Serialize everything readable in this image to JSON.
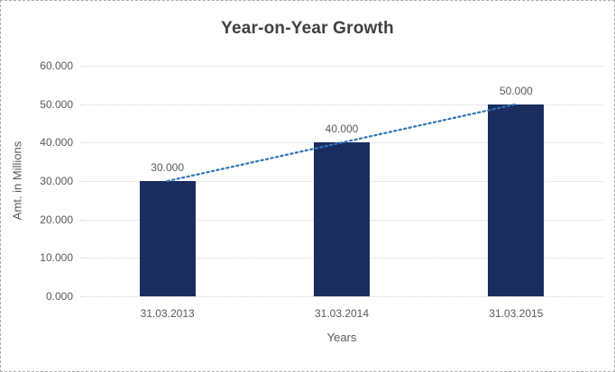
{
  "window": {
    "background": "#ffffff",
    "border_color": "#ababab"
  },
  "chart_data": {
    "type": "bar",
    "title": "Year-on-Year Growth",
    "xlabel": "Years",
    "ylabel": "Amt. in Millions",
    "categories": [
      "31.03.2013",
      "31.03.2014",
      "31.03.2015"
    ],
    "values": [
      30000,
      40000,
      50000
    ],
    "data_labels": [
      "30.000",
      "40.000",
      "50.000"
    ],
    "y_ticks": [
      {
        "value": 0,
        "label": "0.000"
      },
      {
        "value": 10000,
        "label": "10.000"
      },
      {
        "value": 20000,
        "label": "20.000"
      },
      {
        "value": 30000,
        "label": "30.000"
      },
      {
        "value": 40000,
        "label": "40.000"
      },
      {
        "value": 50000,
        "label": "50.000"
      },
      {
        "value": 60000,
        "label": "60.000"
      }
    ],
    "ylim": [
      0,
      60000
    ],
    "grid": true,
    "legend_position": "none",
    "bar_color": "#1b2d5f",
    "trendline": {
      "type": "linear",
      "style": "dotted",
      "color": "#2E75B6",
      "from_value": 30000,
      "to_value": 50000
    }
  }
}
